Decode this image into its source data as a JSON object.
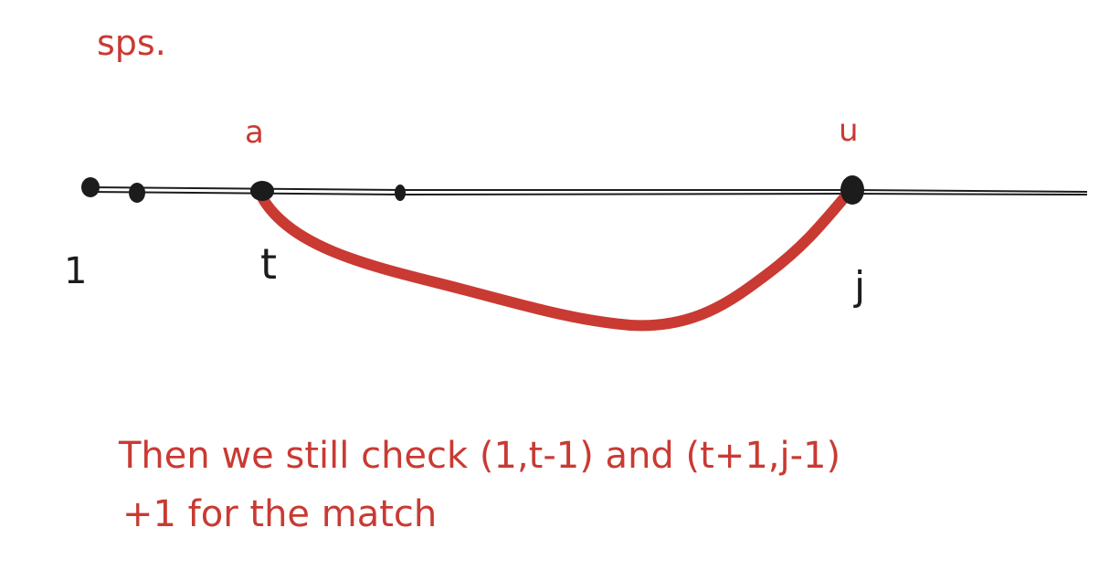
{
  "heading": "sps.",
  "points": {
    "left_label": "1",
    "t_label": "t",
    "j_label": "j",
    "t_char": "a",
    "j_char": "u"
  },
  "note": {
    "line1": "Then we still check (1,t-1) and (t+1,j-1)",
    "line2": "+1 for the match"
  },
  "colors": {
    "ink": "#1c1c1c",
    "red": "#c93a33"
  }
}
